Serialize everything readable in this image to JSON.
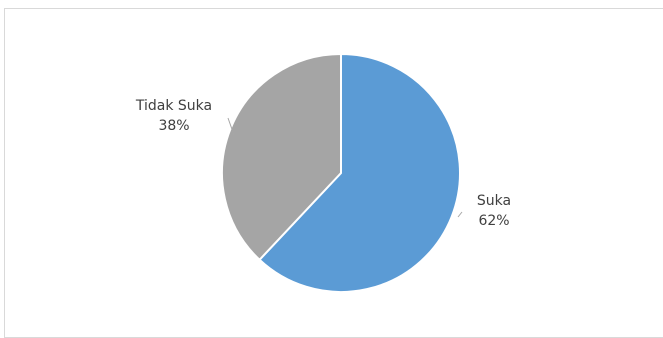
{
  "chart_data": {
    "type": "pie",
    "title": "",
    "slices": [
      {
        "label": "Suka",
        "value": 62,
        "value_label": "62%",
        "color": "#5b9bd5"
      },
      {
        "label": "Tidak Suka",
        "value": 38,
        "value_label": "38%",
        "color": "#a5a5a5"
      }
    ],
    "start_angle_deg": 0,
    "direction": "clockwise",
    "legend": "none",
    "data_labels": "outside-with-leader-lines"
  }
}
